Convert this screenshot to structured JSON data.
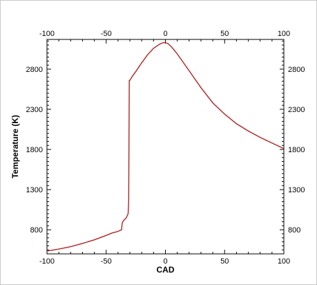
{
  "chart_data": {
    "type": "line",
    "title": "",
    "xlabel": "CAD",
    "ylabel": "Temperature (K)",
    "xlim": [
      -100,
      100
    ],
    "ylim": [
      500,
      3170
    ],
    "x_ticks": [
      -100,
      -50,
      0,
      50,
      100
    ],
    "y_ticks": [
      800,
      1300,
      1800,
      2300,
      2800
    ],
    "top_axis": true,
    "right_axis": true,
    "grid": false,
    "line_color": "#b22222",
    "series": [
      {
        "x": [
          -100,
          -90,
          -80,
          -70,
          -60,
          -50,
          -45,
          -40,
          -37,
          -36.5,
          -36,
          -35,
          -33,
          -31.5,
          -31,
          -30.5,
          -30,
          -28,
          -25,
          -20,
          -15,
          -10,
          -5,
          -2,
          0,
          2,
          5,
          10,
          20,
          30,
          40,
          50,
          60,
          70,
          80,
          90,
          100
        ],
        "y": [
          535,
          560,
          590,
          630,
          675,
          730,
          760,
          780,
          800,
          880,
          900,
          920,
          950,
          1000,
          1150,
          2660,
          2660,
          2710,
          2770,
          2880,
          2980,
          3060,
          3110,
          3130,
          3130,
          3120,
          3080,
          2990,
          2780,
          2570,
          2380,
          2240,
          2120,
          2030,
          1950,
          1880,
          1810
        ]
      }
    ]
  }
}
